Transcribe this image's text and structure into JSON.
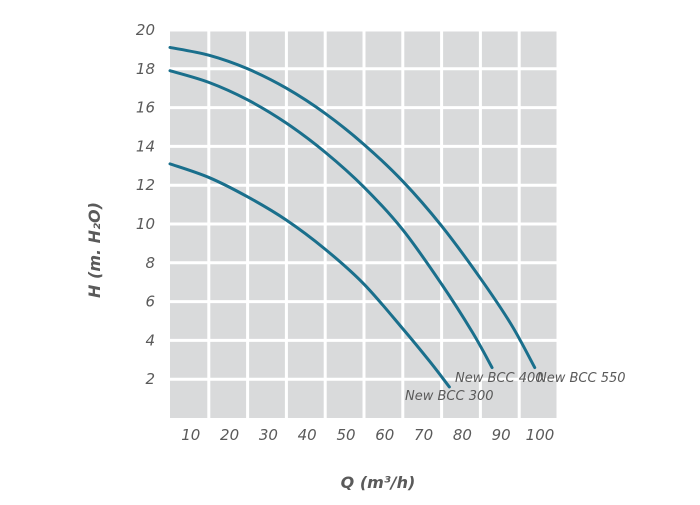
{
  "chart_data": {
    "type": "line",
    "xlabel": "Q (m³/h)",
    "ylabel": "H (m. H₂O)",
    "xlim": [
      0,
      100
    ],
    "ylim": [
      0,
      20
    ],
    "xticks": [
      "10",
      "20",
      "30",
      "40",
      "50",
      "60",
      "70",
      "80",
      "90",
      "100"
    ],
    "yticks": [
      "2",
      "4",
      "6",
      "8",
      "10",
      "12",
      "14",
      "16",
      "18",
      "20"
    ],
    "grid": true,
    "background": "#d9dadb",
    "line_color": "#1a6f8c",
    "series": [
      {
        "name": "New BCC 300",
        "x": [
          0,
          10,
          20,
          30,
          40,
          50,
          60,
          67,
          72
        ],
        "y": [
          13.1,
          12.4,
          11.4,
          10.2,
          8.7,
          6.9,
          4.6,
          2.9,
          1.6
        ]
      },
      {
        "name": "New BCC 400",
        "x": [
          0,
          10,
          20,
          30,
          40,
          50,
          60,
          70,
          78,
          83
        ],
        "y": [
          17.9,
          17.3,
          16.4,
          15.2,
          13.7,
          11.9,
          9.7,
          6.9,
          4.4,
          2.6
        ]
      },
      {
        "name": "New BCC 550",
        "x": [
          0,
          10,
          20,
          30,
          40,
          50,
          60,
          70,
          80,
          88,
          94
        ],
        "y": [
          19.1,
          18.7,
          18.0,
          17.0,
          15.7,
          14.1,
          12.2,
          9.9,
          7.2,
          4.8,
          2.6
        ]
      }
    ]
  }
}
